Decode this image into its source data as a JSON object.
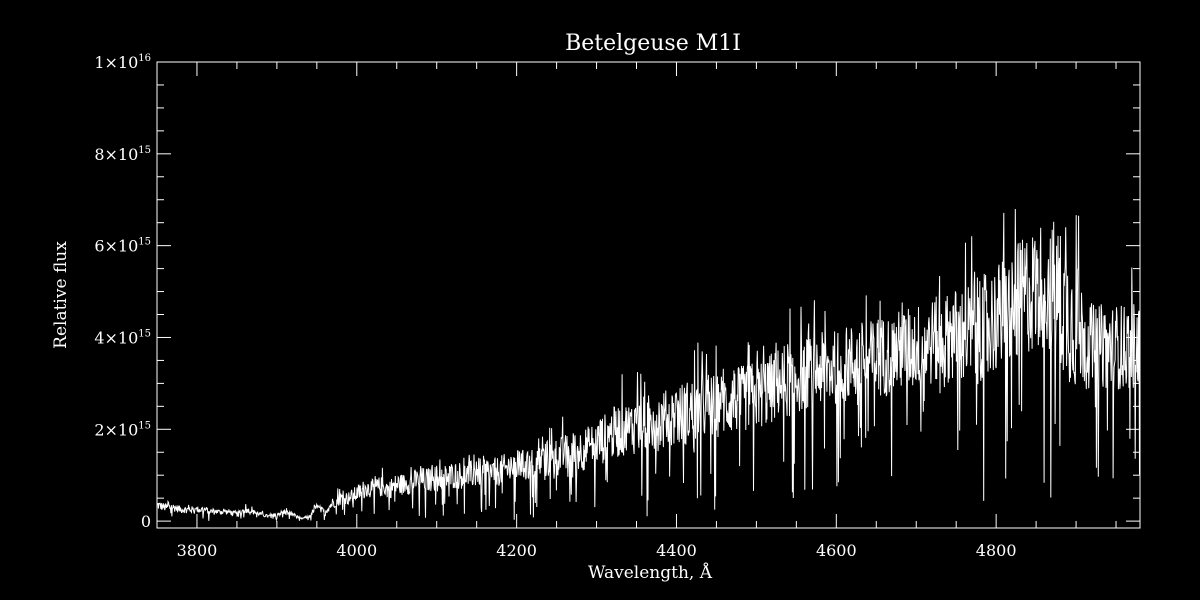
{
  "chart_data": {
    "type": "line",
    "title": "Betelgeuse   M1I",
    "xlabel": "Wavelength, Å",
    "ylabel": "Relative flux",
    "xlim": [
      3750,
      4980
    ],
    "ylim": [
      -150000000000000.0,
      1e+16
    ],
    "grid": false,
    "xticks": [
      3800,
      4000,
      4200,
      4400,
      4600,
      4800
    ],
    "x_tick_labels": [
      "3800",
      "4000",
      "4200",
      "4400",
      "4600",
      "4800"
    ],
    "yticks": [
      0,
      2000000000000000.0,
      4000000000000000.0,
      6000000000000000.0,
      8000000000000000.0,
      1e+16
    ],
    "y_tick_labels": [
      {
        "mant": "0",
        "exp": ""
      },
      {
        "mant": "2×10",
        "exp": "15"
      },
      {
        "mant": "4×10",
        "exp": "15"
      },
      {
        "mant": "6×10",
        "exp": "15"
      },
      {
        "mant": "8×10",
        "exp": "15"
      },
      {
        "mant": "1×10",
        "exp": "16"
      }
    ],
    "series": [
      {
        "color": "#ffffff",
        "x_start": 3750,
        "x_step": 10,
        "envelope": [
          350000000000000.0,
          300000000000000.0,
          300000000000000.0,
          250000000000000.0,
          250000000000000.0,
          250000000000000.0,
          250000000000000.0,
          200000000000000.0,
          200000000000000.0,
          200000000000000.0,
          150000000000000.0,
          250000000000000.0,
          200000000000000.0,
          150000000000000.0,
          100000000000000.0,
          150000000000000.0,
          200000000000000.0,
          150000000000000.0,
          50000000000000.0,
          100000000000000.0,
          300000000000000.0,
          200000000000000.0,
          400000000000000.0,
          500000000000000.0,
          500000000000000.0,
          600000000000000.0,
          700000000000000.0,
          700000000000000.0,
          750000000000000.0,
          700000000000000.0,
          800000000000000.0,
          800000000000000.0,
          850000000000000.0,
          900000000000000.0,
          900000000000000.0,
          950000000000000.0,
          950000000000000.0,
          1000000000000000.0,
          1000000000000000.0,
          1000000000000000.0,
          1050000000000000.0,
          1100000000000000.0,
          1050000000000000.0,
          1100000000000000.0,
          1150000000000000.0,
          1200000000000000.0,
          1200000000000000.0,
          1250000000000000.0,
          1300000000000000.0,
          1350000000000000.0,
          1400000000000000.0,
          1450000000000000.0,
          1500000000000000.0,
          1550000000000000.0,
          1600000000000000.0,
          1700000000000000.0,
          1800000000000000.0,
          1900000000000000.0,
          2000000000000000.0,
          2000000000000000.0,
          2100000000000000.0,
          2100000000000000.0,
          2150000000000000.0,
          2200000000000000.0,
          2200000000000000.0,
          2300000000000000.0,
          2350000000000000.0,
          2400000000000000.0,
          2450000000000000.0,
          2500000000000000.0,
          2500000000000000.0,
          2550000000000000.0,
          2600000000000000.0,
          2650000000000000.0,
          2700000000000000.0,
          2750000000000000.0,
          2800000000000000.0,
          2900000000000000.0,
          3000000000000000.0,
          3100000000000000.0,
          3100000000000000.0,
          3200000000000000.0,
          3250000000000000.0,
          3300000000000000.0,
          3300000000000000.0,
          3350000000000000.0,
          3400000000000000.0,
          3450000000000000.0,
          3500000000000000.0,
          3500000000000000.0,
          3550000000000000.0,
          3600000000000000.0,
          3650000000000000.0,
          3700000000000000.0,
          3750000000000000.0,
          3800000000000000.0,
          3850000000000000.0,
          3900000000000000.0,
          3950000000000000.0,
          4000000000000000.0,
          4000000000000000.0,
          4050000000000000.0,
          4100000000000000.0,
          4200000000000000.0,
          4300000000000000.0,
          4400000000000000.0,
          4500000000000000.0,
          4600000000000000.0,
          4800000000000000.0,
          5000000000000000.0,
          5000000000000000.0,
          5200000000000000.0,
          5100000000000000.0,
          4800000000000000.0,
          4500000000000000.0,
          4200000000000000.0,
          4000000000000000.0,
          3800000000000000.0,
          3800000000000000.0,
          3800000000000000.0,
          3800000000000000.0,
          3800000000000000.0,
          3800000000000000.0,
          3800000000000000.0
        ],
        "noise_fraction": [
          0.55,
          0.55,
          0.55,
          0.55,
          0.55,
          0.55,
          0.55,
          0.55,
          0.55,
          0.55,
          0.55,
          0.55,
          0.55,
          0.55,
          0.55,
          0.55,
          0.55,
          0.55,
          0.55,
          0.55,
          0.55,
          0.55,
          0.55,
          0.55,
          0.55,
          0.55,
          0.55,
          0.55,
          0.55,
          0.55,
          0.55,
          0.55,
          0.55,
          0.55,
          0.55,
          0.55,
          0.55,
          0.55,
          0.55,
          0.55,
          0.55,
          0.55,
          0.55,
          0.55,
          0.55,
          0.55,
          0.55,
          0.55,
          0.55,
          0.55,
          0.55,
          0.55,
          0.55,
          0.55,
          0.55,
          0.55,
          0.55,
          0.55,
          0.55,
          0.55,
          0.55,
          0.55,
          0.55,
          0.55,
          0.55,
          0.55,
          0.55,
          0.55,
          0.55,
          0.55,
          0.5,
          0.5,
          0.5,
          0.5,
          0.5,
          0.5,
          0.5,
          0.5,
          0.5,
          0.5,
          0.45,
          0.45,
          0.45,
          0.45,
          0.45,
          0.45,
          0.45,
          0.45,
          0.45,
          0.45,
          0.45,
          0.45,
          0.45,
          0.45,
          0.45,
          0.45,
          0.45,
          0.45,
          0.45,
          0.45,
          0.5,
          0.5,
          0.5,
          0.5,
          0.5,
          0.5,
          0.5,
          0.5,
          0.5,
          0.5,
          0.5,
          0.5,
          0.55,
          0.6,
          0.6,
          0.6,
          0.5,
          0.45,
          0.45,
          0.45,
          0.45,
          0.45,
          0.45,
          0.45
        ]
      }
    ]
  }
}
